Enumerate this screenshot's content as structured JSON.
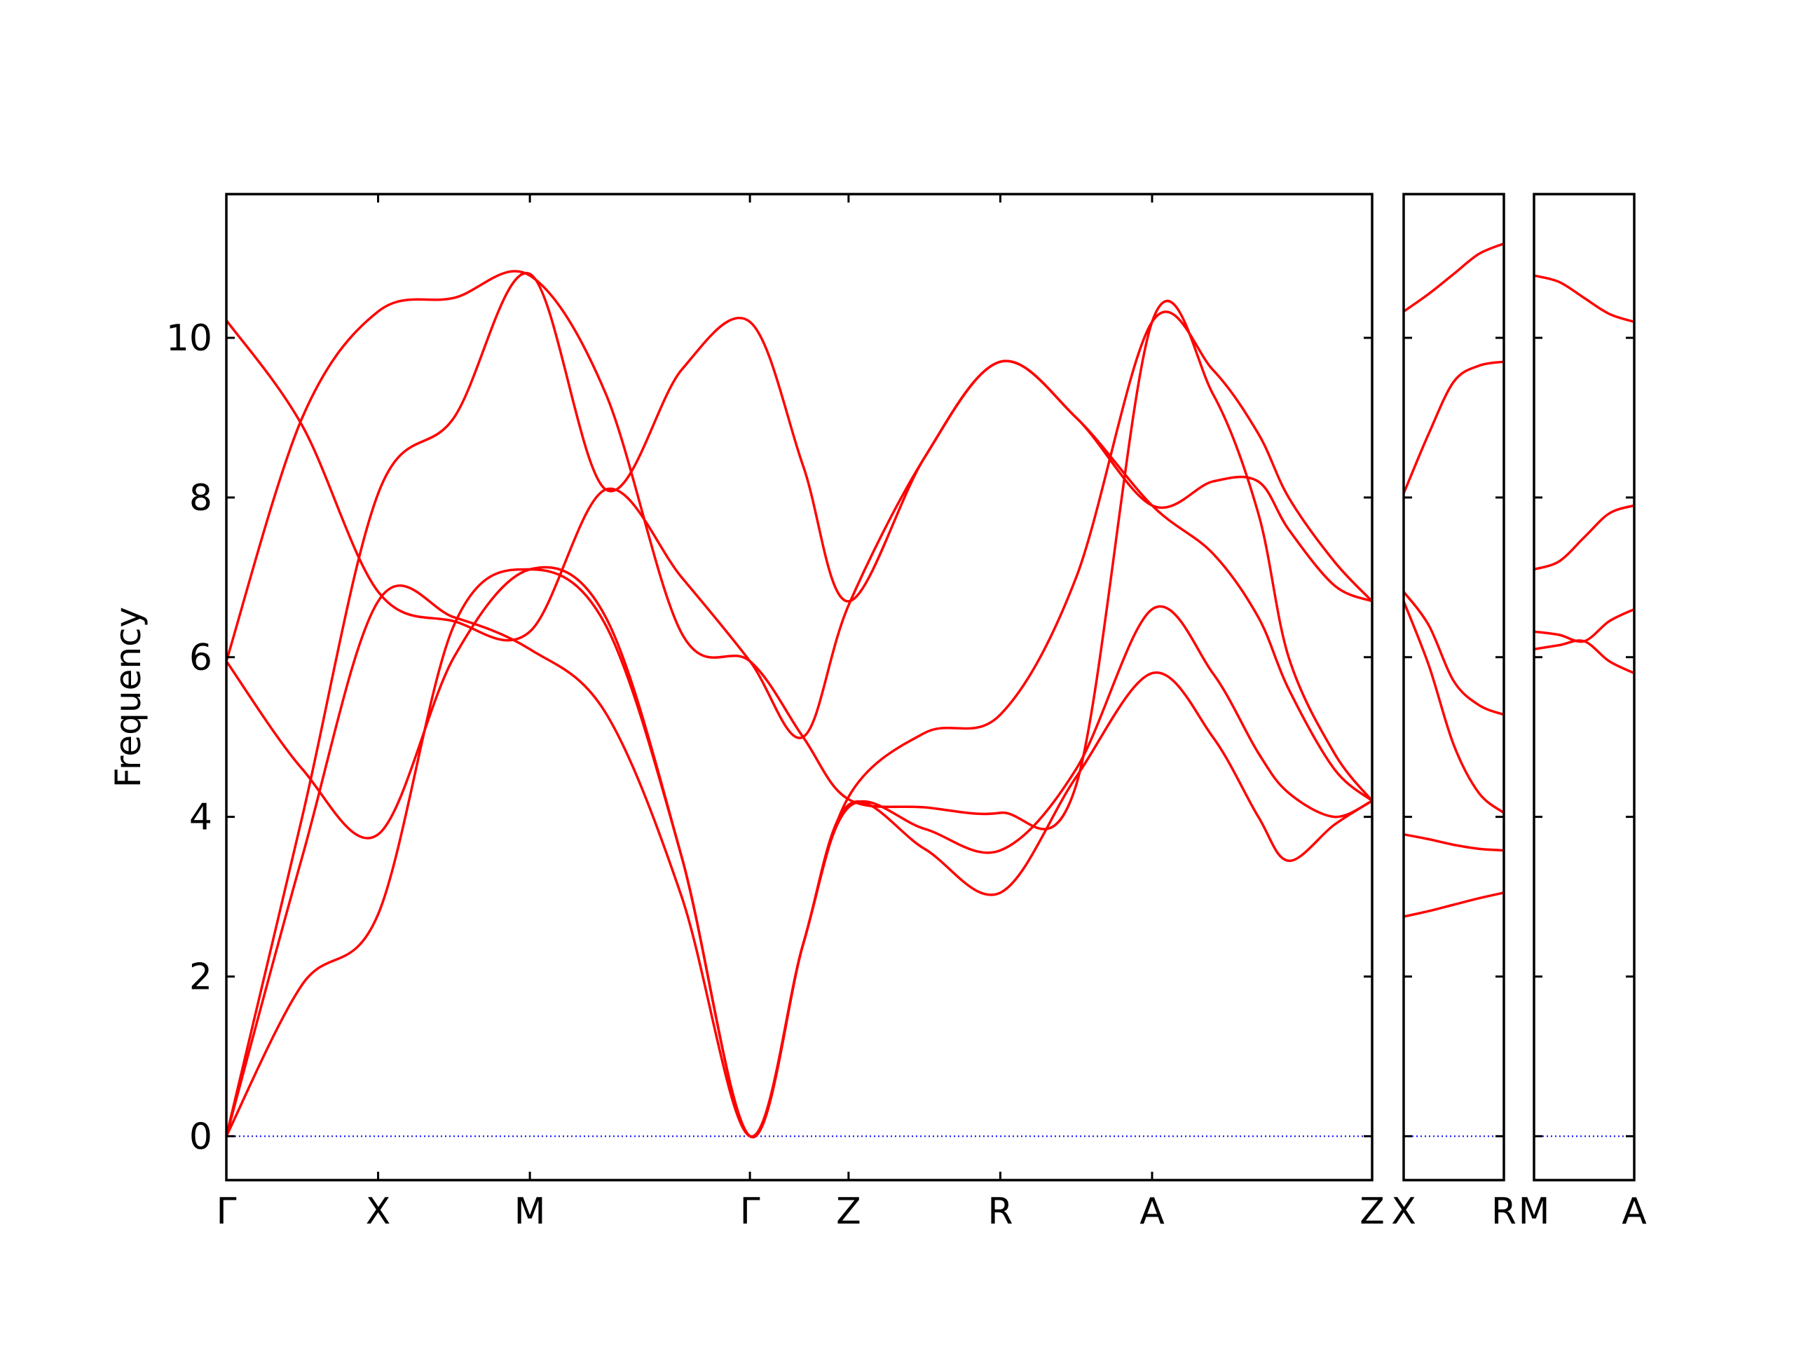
{
  "chart_data": {
    "type": "line",
    "title": "",
    "ylabel": "Frequency",
    "ylim": [
      -0.55,
      11.8
    ],
    "yticks": [
      0,
      2,
      4,
      6,
      8,
      10
    ],
    "ytick_labels": [
      "0",
      "2",
      "4",
      "6",
      "8",
      "10"
    ],
    "grid": false,
    "legend": "none",
    "line_color": "#ff0000",
    "zero_line_color": "#0000ff",
    "panels": [
      {
        "xlim": [
          0,
          7.55
        ],
        "ticks": [
          0,
          1,
          2,
          3.45,
          4.1,
          5.1,
          6.1,
          7.55
        ],
        "tick_labels": [
          "Γ",
          "X",
          "M",
          "Γ",
          "Z",
          "R",
          "A",
          "Z"
        ],
        "series": [
          {
            "x": [
              0,
              0.5,
              1.0,
              1.5,
              2.0,
              2.5,
              3.0,
              3.45,
              3.8,
              4.1,
              4.6,
              5.1,
              5.6,
              6.1,
              6.5,
              6.8,
              7.0,
              7.3,
              7.55
            ],
            "y": [
              0,
              1.9,
              2.78,
              6.4,
              7.1,
              6.4,
              3.5,
              0,
              2.4,
              4.15,
              3.6,
              3.05,
              4.5,
              5.8,
              5.0,
              4.0,
              3.45,
              3.9,
              4.2
            ]
          },
          {
            "x": [
              0,
              0.5,
              1.0,
              1.5,
              2.0,
              2.5,
              3.0,
              3.45,
              3.8,
              4.1,
              4.6,
              5.1,
              5.6,
              6.1,
              6.5,
              6.8,
              7.0,
              7.3,
              7.55
            ],
            "y": [
              0,
              3.5,
              6.7,
              6.5,
              6.1,
              5.3,
              3.0,
              0,
              2.4,
              4.12,
              3.85,
              3.58,
              4.6,
              6.6,
              5.8,
              4.8,
              4.3,
              4.0,
              4.2
            ]
          },
          {
            "x": [
              0,
              0.5,
              1.0,
              1.5,
              2.0,
              2.5,
              3.0,
              3.45,
              3.8,
              4.1,
              4.6,
              5.1,
              5.6,
              6.1,
              6.5,
              6.8,
              7.0,
              7.3,
              7.55
            ],
            "y": [
              0,
              4.0,
              8.05,
              9.0,
              10.8,
              8.1,
              9.6,
              10.2,
              8.4,
              6.7,
              8.5,
              9.7,
              9.0,
              7.9,
              8.2,
              8.2,
              7.6,
              6.9,
              6.7
            ]
          },
          {
            "x": [
              0,
              0.5,
              1.0,
              1.5,
              2.0,
              2.5,
              3.0,
              3.45,
              3.8,
              4.1,
              4.6,
              5.1,
              5.6,
              6.1,
              6.5,
              6.8,
              7.0,
              7.3,
              7.55
            ],
            "y": [
              5.95,
              9.0,
              10.33,
              10.5,
              10.78,
              9.3,
              6.3,
              5.95,
              5.0,
              4.22,
              4.12,
              4.05,
              4.4,
              10.2,
              9.3,
              7.8,
              6.0,
              4.8,
              4.2
            ]
          },
          {
            "x": [
              0,
              0.5,
              1.0,
              1.5,
              2.0,
              2.5,
              3.0,
              3.45,
              3.8,
              4.1,
              4.6,
              5.1,
              5.6,
              6.1,
              6.5,
              6.8,
              7.0,
              7.3,
              7.55
            ],
            "y": [
              5.95,
              4.6,
              3.78,
              6.0,
              7.1,
              6.5,
              3.5,
              0,
              2.4,
              4.25,
              5.05,
              5.28,
              7.0,
              10.2,
              9.6,
              8.8,
              8.0,
              7.2,
              6.7
            ]
          },
          {
            "x": [
              0,
              0.5,
              1.0,
              1.5,
              2.0,
              2.5,
              3.0,
              3.45,
              3.8,
              4.1,
              4.6,
              5.1,
              5.6,
              6.1,
              6.5,
              6.8,
              7.0,
              7.3,
              7.55
            ],
            "y": [
              10.22,
              8.9,
              6.82,
              6.45,
              6.32,
              8.1,
              7.0,
              5.95,
              5.0,
              6.65,
              8.5,
              9.7,
              9.0,
              7.9,
              7.3,
              6.5,
              5.6,
              4.6,
              4.2
            ]
          }
        ]
      },
      {
        "xlim": [
          0,
          1
        ],
        "ticks": [
          0,
          1
        ],
        "tick_labels": [
          "X",
          "R"
        ],
        "series": [
          {
            "x": [
              0,
              0.25,
              0.5,
              0.75,
              1
            ],
            "y": [
              10.33,
              10.55,
              10.8,
              11.05,
              11.18
            ]
          },
          {
            "x": [
              0,
              0.25,
              0.5,
              0.75,
              1
            ],
            "y": [
              8.05,
              8.8,
              9.45,
              9.65,
              9.7
            ]
          },
          {
            "x": [
              0,
              0.25,
              0.5,
              0.75,
              1
            ],
            "y": [
              6.82,
              6.4,
              5.7,
              5.4,
              5.28
            ]
          },
          {
            "x": [
              0,
              0.25,
              0.5,
              0.75,
              1
            ],
            "y": [
              6.7,
              5.9,
              4.9,
              4.3,
              4.05
            ]
          },
          {
            "x": [
              0,
              0.25,
              0.5,
              0.75,
              1
            ],
            "y": [
              3.78,
              3.72,
              3.65,
              3.6,
              3.58
            ]
          },
          {
            "x": [
              0,
              0.25,
              0.5,
              0.75,
              1
            ],
            "y": [
              2.75,
              2.82,
              2.9,
              2.98,
              3.05
            ]
          }
        ]
      },
      {
        "xlim": [
          0,
          1
        ],
        "ticks": [
          0,
          1
        ],
        "tick_labels": [
          "M",
          "A"
        ],
        "series": [
          {
            "x": [
              0,
              0.25,
              0.5,
              0.75,
              1
            ],
            "y": [
              10.78,
              10.7,
              10.5,
              10.3,
              10.2
            ]
          },
          {
            "x": [
              0,
              0.25,
              0.5,
              0.75,
              1
            ],
            "y": [
              7.1,
              7.2,
              7.5,
              7.8,
              7.9
            ]
          },
          {
            "x": [
              0,
              0.25,
              0.5,
              0.75,
              1
            ],
            "y": [
              6.32,
              6.28,
              6.2,
              6.45,
              6.6
            ]
          },
          {
            "x": [
              0,
              0.25,
              0.5,
              0.75,
              1
            ],
            "y": [
              6.1,
              6.15,
              6.2,
              5.95,
              5.8
            ]
          }
        ]
      }
    ]
  }
}
